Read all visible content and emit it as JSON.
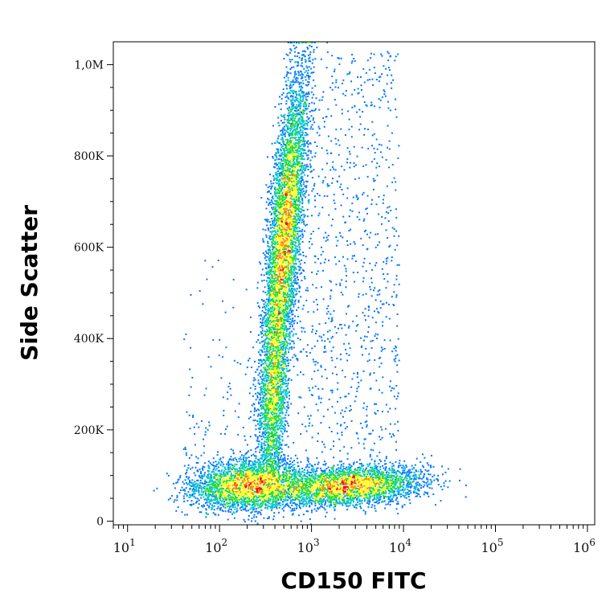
{
  "chart_data": {
    "type": "scatter",
    "style": "density pseudocolor dot plot",
    "xlabel": "CD150 FITC",
    "ylabel": "Side Scatter",
    "x_scale": "log",
    "xlim": [
      7,
      1200000
    ],
    "ylim": [
      -8000,
      1050000
    ],
    "x_ticks": [
      {
        "value": 10,
        "base": "10",
        "exp": "1"
      },
      {
        "value": 100,
        "base": "10",
        "exp": "2"
      },
      {
        "value": 1000,
        "base": "10",
        "exp": "3"
      },
      {
        "value": 10000,
        "base": "10",
        "exp": "4"
      },
      {
        "value": 100000,
        "base": "10",
        "exp": "5"
      },
      {
        "value": 1000000,
        "base": "10",
        "exp": "6"
      }
    ],
    "y_ticks": [
      {
        "value": 0,
        "label": "0"
      },
      {
        "value": 200000,
        "label": "200K"
      },
      {
        "value": 400000,
        "label": "400K"
      },
      {
        "value": 600000,
        "label": "600K"
      },
      {
        "value": 800000,
        "label": "800K"
      },
      {
        "value": 1000000,
        "label": "1,0M"
      }
    ],
    "populations": [
      {
        "name": "",
        "x_center": 500,
        "y_center": 620000,
        "x_spread_log10": 0.08,
        "y_spread": 170000,
        "trend": "steep diagonal streak rising to the top axis"
      },
      {
        "name": "",
        "x_center": 220,
        "y_center": 80000,
        "x_spread_log10": 0.3,
        "y_spread": 25000,
        "trend": "dense cluster near baseline"
      },
      {
        "name": "",
        "x_center": 2500,
        "y_center": 80000,
        "x_spread_log10": 0.35,
        "y_spread": 20000,
        "trend": "horizontal band, low side scatter"
      },
      {
        "name": "",
        "x_center": 2000,
        "y_center": 450000,
        "x_spread_log10": 0.4,
        "y_spread": 250000,
        "trend": "sparse scattered events"
      }
    ],
    "colormap": [
      "#0000cc",
      "#0077ff",
      "#00c8c8",
      "#22dd22",
      "#ffff00",
      "#ff8800",
      "#ff0000"
    ],
    "grid": false,
    "legend": "none"
  }
}
